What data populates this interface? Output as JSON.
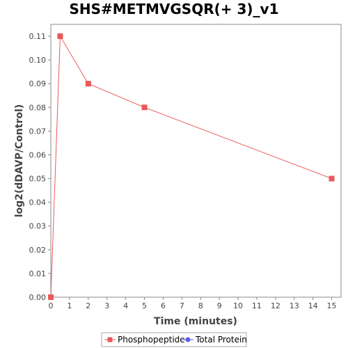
{
  "chart_data": {
    "type": "line",
    "title": "SHS#METMVGSQR(+ 3)_v1",
    "xlabel": "Time (minutes)",
    "ylabel": "log2(dDAVP/Control)",
    "xlim": [
      0,
      15.5
    ],
    "ylim": [
      0,
      0.115
    ],
    "x_ticks": [
      "0",
      "1",
      "2",
      "3",
      "4",
      "5",
      "6",
      "7",
      "8",
      "9",
      "10",
      "11",
      "12",
      "13",
      "14",
      "15"
    ],
    "y_ticks": [
      "0.00",
      "0.01",
      "0.02",
      "0.03",
      "0.04",
      "0.05",
      "0.06",
      "0.07",
      "0.08",
      "0.09",
      "0.10",
      "0.11"
    ],
    "grid": false,
    "legend_position": "bottom",
    "series": [
      {
        "name": "Phosphopeptide",
        "color": "#e8595a",
        "marker": "square",
        "x": [
          0,
          0.5,
          2,
          5,
          15
        ],
        "y": [
          0.0,
          0.11,
          0.09,
          0.08,
          0.05
        ]
      },
      {
        "name": "Total Protein",
        "color": "#5b5bf0",
        "marker": "circle",
        "x": [],
        "y": []
      }
    ]
  }
}
